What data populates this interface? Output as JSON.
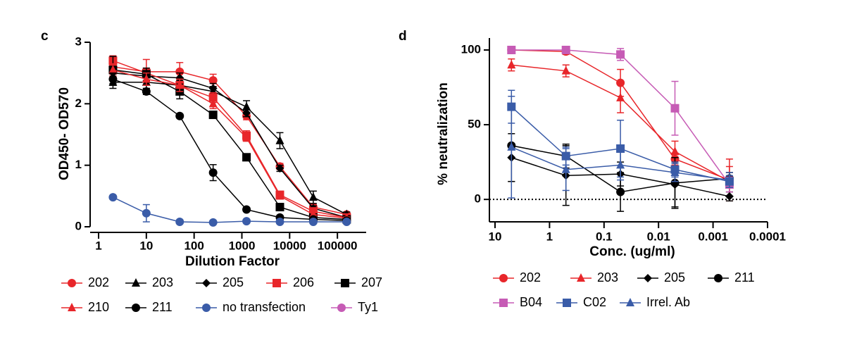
{
  "chart_data": [
    {
      "type": "line",
      "panel": "c",
      "ylabel": "OD450- OD570",
      "xlabel": "Dilution Factor",
      "log_x": true,
      "xlim": [
        1,
        400000
      ],
      "xticks": [
        1,
        10,
        100,
        1000,
        10000,
        100000
      ],
      "ylim": [
        0,
        3
      ],
      "yticks": [
        0,
        1,
        2,
        3
      ],
      "x": [
        2,
        10,
        50,
        250,
        1250,
        6250,
        31250,
        156250
      ],
      "series": [
        {
          "name": "202",
          "color": "#e8262a",
          "marker": "circle",
          "values": [
            2.6,
            2.52,
            2.52,
            2.38,
            1.8,
            0.98,
            0.32,
            0.2
          ],
          "errors": [
            0.12,
            0.2,
            0.15,
            0.1,
            0.06,
            0.05,
            0.04,
            0.03
          ]
        },
        {
          "name": "203",
          "color": "#000000",
          "marker": "triangle",
          "values": [
            2.35,
            2.35,
            2.3,
            2.2,
            1.95,
            1.4,
            0.48,
            0.2
          ],
          "errors": [
            0.1,
            0.1,
            0.08,
            0.08,
            0.1,
            0.13,
            0.1,
            0.04
          ]
        },
        {
          "name": "205",
          "color": "#000000",
          "marker": "diamond",
          "values": [
            2.5,
            2.45,
            2.42,
            2.25,
            1.85,
            0.95,
            0.3,
            0.15
          ],
          "errors": [
            0.1,
            0.08,
            0.08,
            0.08,
            0.06,
            0.05,
            0.04,
            0.03
          ]
        },
        {
          "name": "206",
          "color": "#e8262a",
          "marker": "square",
          "values": [
            2.7,
            2.5,
            2.3,
            2.1,
            1.48,
            0.52,
            0.25,
            0.15
          ],
          "errors": [
            0.08,
            0.08,
            0.1,
            0.08,
            0.08,
            0.05,
            0.04,
            0.03
          ]
        },
        {
          "name": "207",
          "color": "#000000",
          "marker": "square",
          "values": [
            2.55,
            2.48,
            2.2,
            1.82,
            1.13,
            0.32,
            0.15,
            0.12
          ],
          "errors": [
            0.22,
            0.1,
            0.12,
            0.05,
            0.04,
            0.03,
            0.03,
            0.02
          ]
        },
        {
          "name": "210",
          "color": "#e8262a",
          "marker": "triangle",
          "values": [
            2.55,
            2.4,
            2.3,
            2.0,
            1.45,
            0.5,
            0.2,
            0.14
          ],
          "errors": [
            0.1,
            0.1,
            0.1,
            0.08,
            0.06,
            0.05,
            0.03,
            0.02
          ]
        },
        {
          "name": "211",
          "color": "#000000",
          "marker": "circle",
          "values": [
            2.4,
            2.2,
            1.8,
            0.88,
            0.28,
            0.15,
            0.12,
            0.1
          ],
          "errors": [
            0.1,
            0.05,
            0.03,
            0.13,
            0.03,
            0.03,
            0.02,
            0.02
          ]
        },
        {
          "name": "no transfection",
          "color": "#3a5ca8",
          "marker": "circle",
          "values": [
            0.48,
            0.22,
            0.08,
            0.07,
            0.09,
            0.08,
            0.08,
            0.08
          ],
          "errors": [
            0.02,
            0.14,
            0.02,
            0.02,
            0.02,
            0.02,
            0.02,
            0.02
          ]
        },
        {
          "name": "Ty1",
          "color": "#c65bb5",
          "marker": "circle",
          "values": [
            null,
            null,
            null,
            null,
            null,
            null,
            null,
            null
          ],
          "errors": [
            null,
            null,
            null,
            null,
            null,
            null,
            null,
            null
          ]
        }
      ]
    },
    {
      "type": "line",
      "panel": "d",
      "ylabel": "% neutralization",
      "xlabel": "Conc. (ug/ml)",
      "log_x": true,
      "xlim": [
        10,
        0.0001
      ],
      "xticks": [
        10,
        1,
        0.1,
        0.01,
        0.001,
        0.0001
      ],
      "ylim": [
        -15,
        108
      ],
      "yticks": [
        0,
        50,
        100
      ],
      "zero_line": true,
      "x": [
        5,
        0.5,
        0.05,
        0.005,
        0.0005
      ],
      "series": [
        {
          "name": "202",
          "color": "#e8262a",
          "marker": "circle",
          "values": [
            100,
            99,
            78,
            27,
            13
          ],
          "errors": [
            1,
            2,
            9,
            4,
            14
          ]
        },
        {
          "name": "203",
          "color": "#e8262a",
          "marker": "triangle",
          "values": [
            90,
            86,
            68,
            32,
            12
          ],
          "errors": [
            4,
            4,
            10,
            7,
            10
          ]
        },
        {
          "name": "205",
          "color": "#000000",
          "marker": "diamond",
          "values": [
            28,
            16,
            17,
            10,
            2
          ],
          "errors": [
            16,
            20,
            8,
            15,
            3
          ]
        },
        {
          "name": "211",
          "color": "#000000",
          "marker": "circle",
          "values": [
            36,
            29,
            5,
            11,
            14
          ],
          "errors": [
            24,
            8,
            13,
            17,
            4
          ]
        },
        {
          "name": "B04",
          "color": "#c65bb5",
          "marker": "square",
          "values": [
            100,
            100,
            97,
            61,
            10
          ],
          "errors": [
            1,
            1,
            4,
            18,
            5
          ]
        },
        {
          "name": "C02",
          "color": "#3a5ca8",
          "marker": "square",
          "values": [
            62,
            29,
            34,
            20,
            12
          ],
          "errors": [
            11,
            6,
            19,
            5,
            4
          ]
        },
        {
          "name": "Irrel. Ab",
          "color": "#3a5ca8",
          "marker": "triangle",
          "values": [
            35,
            20,
            23,
            18,
            13
          ],
          "errors": [
            34,
            14,
            10,
            6,
            5
          ]
        }
      ]
    }
  ]
}
